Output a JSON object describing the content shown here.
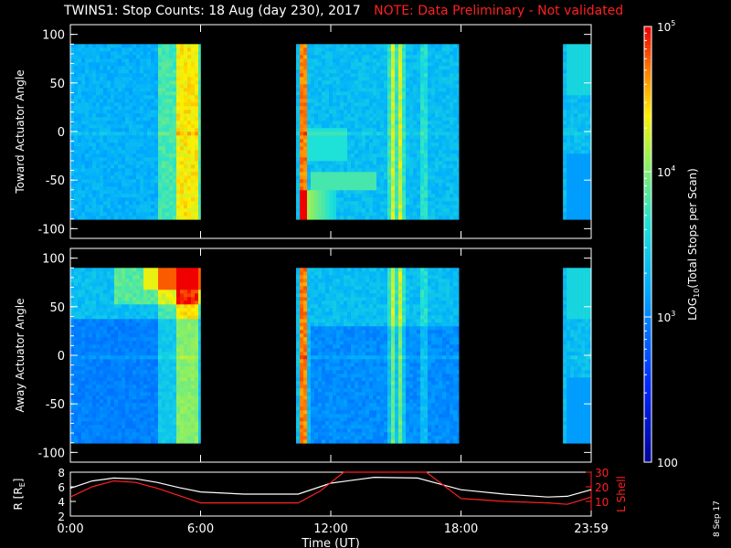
{
  "title_main": "TWINS1: Stop Counts: 18 Aug (day 230), 2017",
  "title_note": "NOTE: Data Preliminary - Not validated",
  "stamp": "8 Sep 17",
  "colors": {
    "note": "#ff2020",
    "background": "#000000",
    "frame": "#ffffff",
    "L_shell": "#ff2020",
    "R_line": "#ffffff"
  },
  "chart_data": [
    {
      "type": "heatmap",
      "ylabel": "Toward Actuator Angle",
      "ylim": [
        -110,
        110
      ],
      "yticks": [
        100,
        50,
        0,
        -50,
        -100
      ],
      "xlim_hours": [
        0,
        24
      ],
      "data_intervals_hours": [
        [
          0,
          6.0
        ],
        [
          10.4,
          17.9
        ],
        [
          22.7,
          24.0
        ]
      ],
      "color_scale": "log"
    },
    {
      "type": "heatmap",
      "ylabel": "Away Actuator Angle",
      "ylim": [
        -110,
        110
      ],
      "yticks": [
        100,
        50,
        0,
        -50,
        -100
      ],
      "xlim_hours": [
        0,
        24
      ],
      "data_intervals_hours": [
        [
          0,
          6.0
        ],
        [
          10.4,
          17.9
        ],
        [
          22.7,
          24.0
        ]
      ],
      "color_scale": "log"
    },
    {
      "type": "line",
      "xlabel": "Time (UT)",
      "xticks": [
        "0:00",
        "6:00",
        "12:00",
        "18:00",
        "23:59"
      ],
      "ylabel_left": "R [R",
      "ylabel_left_sub": "E",
      "ylabel_left_end": "]",
      "ylabel_right": "L Shell",
      "yticks_left": [
        2,
        4,
        6,
        8
      ],
      "yticks_right": [
        10,
        20,
        30
      ],
      "ylim_left": [
        2,
        8
      ],
      "ylim_right": [
        0,
        30
      ],
      "series": [
        {
          "color": "white",
          "x": [
            0,
            1,
            2,
            3,
            4,
            5,
            6,
            8,
            10.5,
            12,
            14,
            16,
            17,
            18,
            20,
            22,
            22.9,
            24
          ],
          "values": [
            5.8,
            6.8,
            7.2,
            7.1,
            6.6,
            5.9,
            5.3,
            5.0,
            5.0,
            6.5,
            7.3,
            7.2,
            6.4,
            5.6,
            5.0,
            4.6,
            4.7,
            5.6
          ]
        },
        {
          "color": "red",
          "x": [
            0,
            1,
            2,
            3,
            4,
            5,
            6,
            8,
            10.5,
            11.5,
            12.6,
            16.4,
            18,
            20,
            22,
            22.9,
            24
          ],
          "values": [
            13,
            20,
            24,
            23,
            19,
            14,
            9,
            9,
            9,
            17,
            31,
            31,
            12,
            10,
            9,
            8,
            13
          ]
        }
      ]
    }
  ],
  "colorbar": {
    "label": "LOG",
    "label_sub": "10",
    "label_rest": "(Total Stops per Scan)",
    "ticks": [
      {
        "base": "10",
        "exp": "5",
        "value": 100000
      },
      {
        "base": "10",
        "exp": "4",
        "value": 10000
      },
      {
        "base": "10",
        "exp": "3",
        "value": 1000
      },
      {
        "base": "100",
        "exp": "",
        "value": 100
      }
    ],
    "range": [
      100,
      100000
    ]
  }
}
